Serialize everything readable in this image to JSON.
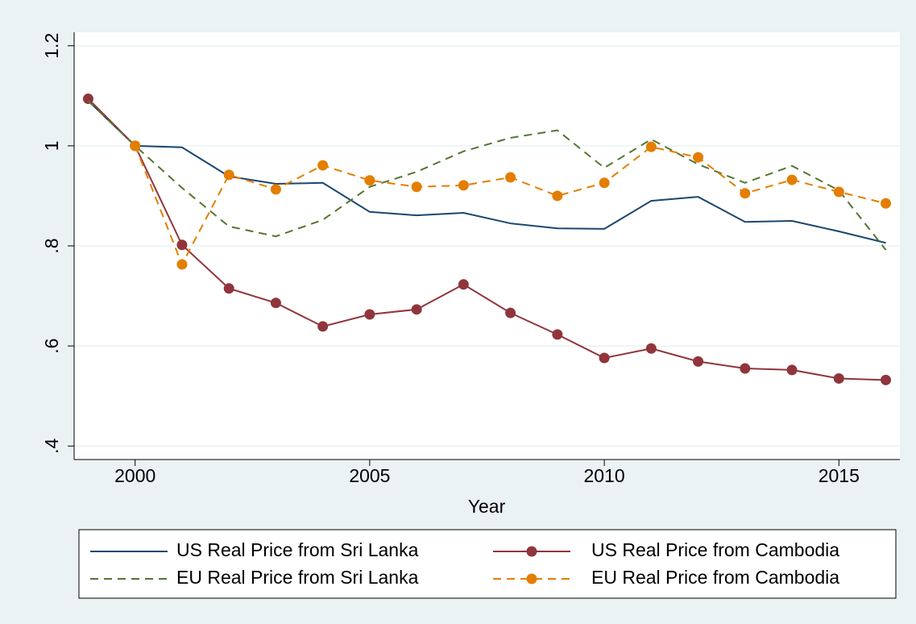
{
  "chart_data": {
    "type": "line",
    "x_label": "Year",
    "x": [
      1999,
      2000,
      2001,
      2002,
      2003,
      2004,
      2005,
      2006,
      2007,
      2008,
      2009,
      2010,
      2011,
      2012,
      2013,
      2014,
      2015,
      2016
    ],
    "xlim": [
      1998.7,
      2016.3
    ],
    "xticks": [
      2000,
      2005,
      2010,
      2015
    ],
    "ylim": [
      0.373,
      1.227
    ],
    "yticks": [
      {
        "value": 0.4,
        "label": ".4"
      },
      {
        "value": 0.6,
        "label": ".6"
      },
      {
        "value": 0.8,
        "label": ".8"
      },
      1,
      1.2
    ],
    "grid": true,
    "series": [
      {
        "name": "US Real Price from Sri Lanka",
        "color": "#1a476f",
        "dashed": false,
        "markers": false,
        "values": [
          1.09,
          1.0,
          0.997,
          0.939,
          0.924,
          0.926,
          0.868,
          0.861,
          0.866,
          0.845,
          0.835,
          0.834,
          0.89,
          0.898,
          0.848,
          0.85,
          0.829,
          0.806
        ]
      },
      {
        "name": "US Real Price from Cambodia",
        "color": "#90353b",
        "dashed": false,
        "markers": true,
        "values": [
          1.094,
          1.0,
          0.802,
          0.715,
          0.686,
          0.639,
          0.663,
          0.673,
          0.723,
          0.666,
          0.623,
          0.576,
          0.595,
          0.569,
          0.555,
          0.552,
          0.535,
          0.532
        ]
      },
      {
        "name": "EU Real Price from Sri Lanka",
        "color": "#55752f",
        "dashed": true,
        "markers": false,
        "values": [
          1.09,
          1.0,
          0.916,
          0.839,
          0.819,
          0.852,
          0.918,
          0.948,
          0.989,
          1.016,
          1.031,
          0.956,
          1.013,
          0.963,
          0.926,
          0.96,
          0.911,
          0.792
        ]
      },
      {
        "name": "EU Real Price from Cambodia",
        "color": "#e37e00",
        "dashed": true,
        "markers": true,
        "values": [
          null,
          1.0,
          0.763,
          0.942,
          0.913,
          0.961,
          0.931,
          0.918,
          0.921,
          0.937,
          0.9,
          0.926,
          0.998,
          0.977,
          0.905,
          0.932,
          0.908,
          0.885
        ]
      }
    ],
    "legend_position": "bottom"
  }
}
